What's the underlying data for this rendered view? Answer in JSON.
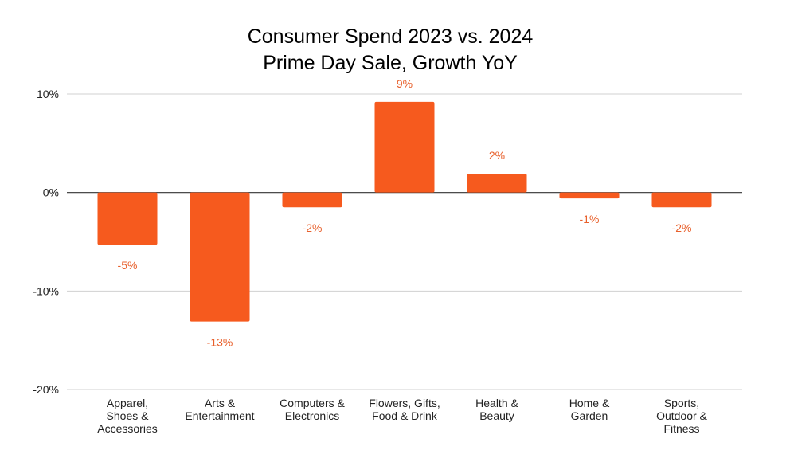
{
  "chart_data": {
    "type": "bar",
    "title": [
      "Consumer Spend 2023 vs. 2024",
      "Prime Day Sale, Growth YoY"
    ],
    "xlabel": "",
    "ylabel": "",
    "ylim": [
      -20,
      10
    ],
    "y_ticks": [
      10,
      0,
      -10,
      -20
    ],
    "y_tick_labels": [
      "10%",
      "0%",
      "-10%",
      "-20%"
    ],
    "grid": true,
    "categories": [
      [
        "Apparel,",
        "Shoes &",
        "Accessories"
      ],
      [
        "Arts &",
        "Entertainment"
      ],
      [
        "Computers &",
        "Electronics"
      ],
      [
        "Flowers, Gifts,",
        "Food & Drink"
      ],
      [
        "Health &",
        "Beauty"
      ],
      [
        "Home &",
        "Garden"
      ],
      [
        "Sports,",
        "Outdoor &",
        "Fitness"
      ]
    ],
    "values": [
      -5.3,
      -13.1,
      -1.5,
      9.2,
      1.9,
      -0.6,
      -1.5
    ],
    "data_labels": [
      "-5%",
      "-13%",
      "-2%",
      "9%",
      "2%",
      "-1%",
      "-2%"
    ],
    "colors": {
      "bar": "#f65a1e",
      "label": "#e8602c"
    }
  }
}
